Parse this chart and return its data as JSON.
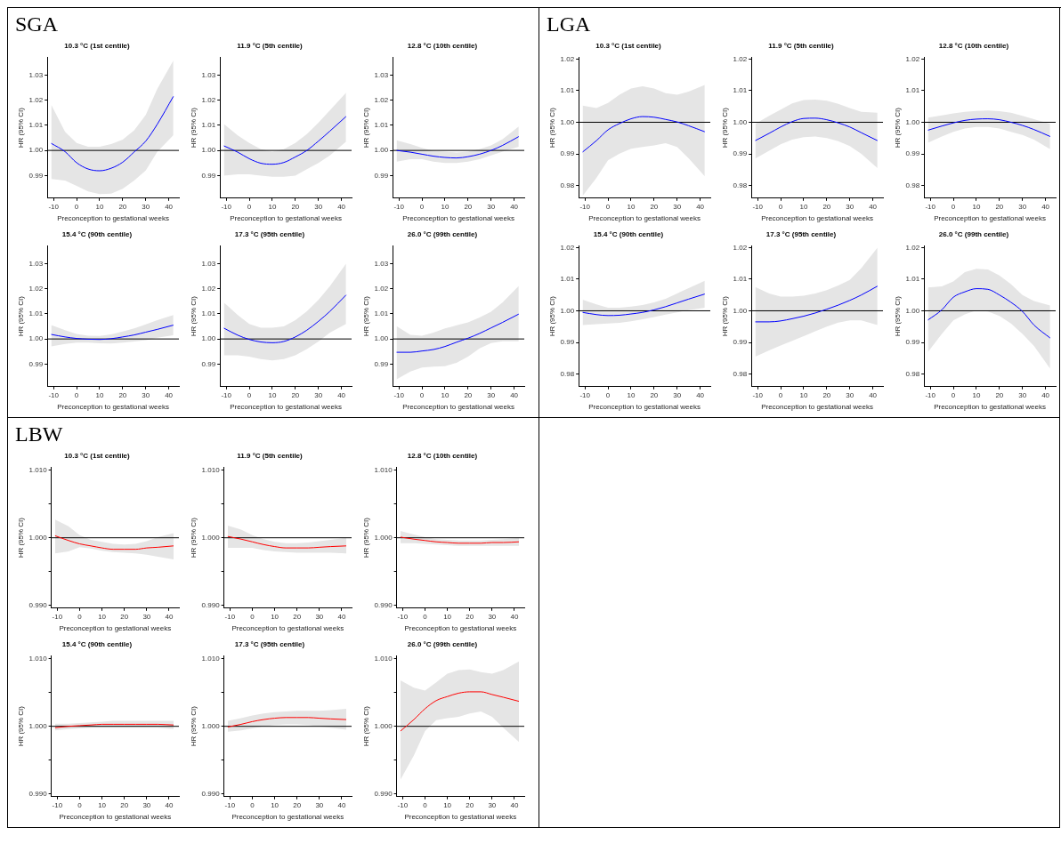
{
  "chart_data": [
    {
      "type": "line",
      "annotations": [
        "SGA"
      ],
      "title": "10.3 °C (1st centile)",
      "xlabel": "Preconception to gestational weeks",
      "ylabel": "HR (95% CI)",
      "xlim": [
        -12.7,
        44.4
      ],
      "xticks": [
        -10,
        0,
        10,
        20,
        30,
        40
      ],
      "ylim": [
        0.981,
        1.037
      ],
      "yticks": [
        0.99,
        {
          "value": 1,
          "label": "1.00"
        },
        1.01,
        1.02,
        1.03
      ],
      "ref_lines": [
        {
          "axis": "y",
          "value": 1,
          "color": "#000000"
        }
      ],
      "x": [
        -11,
        -5,
        0,
        5,
        10,
        15,
        20,
        25,
        30,
        35,
        42
      ],
      "series": [
        {
          "color": "#0000ff",
          "values": [
            1.0028,
            0.9995,
            0.9951,
            0.9926,
            0.9919,
            0.9929,
            0.9953,
            0.9994,
            1.0037,
            1.0104,
            1.0215
          ],
          "lower": [
            0.9886,
            0.988,
            0.9859,
            0.9837,
            0.9826,
            0.9828,
            0.9847,
            0.988,
            0.992,
            0.9994,
            1.0061
          ],
          "upper": [
            1.0182,
            1.0074,
            1.003,
            1.0015,
            1.0015,
            1.0025,
            1.0043,
            1.008,
            1.0141,
            1.0245,
            1.0358
          ]
        }
      ]
    },
    {
      "type": "line",
      "title": "11.9 °C (5th centile)",
      "xlabel": "Preconception to gestational weeks",
      "ylabel": "HR (95% CI)",
      "xlim": [
        -12.7,
        44.4
      ],
      "xticks": [
        -10,
        0,
        10,
        20,
        30,
        40
      ],
      "ylim": [
        0.981,
        1.037
      ],
      "yticks": [
        0.99,
        {
          "value": 1,
          "label": "1.00"
        },
        1.01,
        1.02,
        1.03
      ],
      "ref_lines": [
        {
          "axis": "y",
          "value": 1,
          "color": "#000000"
        }
      ],
      "x": [
        -11,
        -5,
        0,
        5,
        10,
        15,
        20,
        25,
        30,
        35,
        42
      ],
      "series": [
        {
          "color": "#0000ff",
          "values": [
            1.0018,
            0.9993,
            0.9967,
            0.9949,
            0.9945,
            0.9952,
            0.9974,
            1.0,
            1.0037,
            1.0077,
            1.0135
          ],
          "lower": [
            0.99,
            0.9905,
            0.9905,
            0.99,
            0.9895,
            0.9895,
            0.99,
            0.9925,
            0.995,
            0.998,
            1.0035
          ],
          "upper": [
            1.0105,
            1.006,
            1.003,
            1.0005,
            0.9995,
            1.0005,
            1.003,
            1.0065,
            1.011,
            1.016,
            1.023
          ]
        }
      ]
    },
    {
      "type": "line",
      "title": "12.8 °C (10th centile)",
      "xlabel": "Preconception to gestational weeks",
      "ylabel": "HR (95% CI)",
      "xlim": [
        -12.7,
        44.4
      ],
      "xticks": [
        -10,
        0,
        10,
        20,
        30,
        40
      ],
      "ylim": [
        0.981,
        1.037
      ],
      "yticks": [
        0.99,
        {
          "value": 1,
          "label": "1.00"
        },
        1.01,
        1.02,
        1.03
      ],
      "ref_lines": [
        {
          "axis": "y",
          "value": 1,
          "color": "#000000"
        }
      ],
      "x": [
        -11,
        -5,
        0,
        5,
        10,
        15,
        20,
        25,
        30,
        35,
        42
      ],
      "series": [
        {
          "color": "#0000ff",
          "values": [
            1.0,
            0.9993,
            0.9985,
            0.9977,
            0.9972,
            0.997,
            0.9975,
            0.9985,
            1.0,
            1.002,
            1.0055
          ],
          "lower": [
            0.9955,
            0.9965,
            0.9965,
            0.9955,
            0.995,
            0.995,
            0.9955,
            0.9965,
            0.998,
            0.9995,
            1.0015
          ],
          "upper": [
            1.004,
            1.0025,
            1.001,
            0.9998,
            0.9995,
            0.9992,
            0.9995,
            1.0005,
            1.002,
            1.0045,
            1.0095
          ]
        }
      ]
    },
    {
      "type": "line",
      "title": "15.4 °C (90th centile)",
      "xlabel": "Preconception to gestational weeks",
      "ylabel": "HR (95% CI)",
      "xlim": [
        -12.7,
        44.4
      ],
      "xticks": [
        -10,
        0,
        10,
        20,
        30,
        40
      ],
      "ylim": [
        0.981,
        1.037
      ],
      "yticks": [
        0.99,
        {
          "value": 1,
          "label": "1.00"
        },
        1.01,
        1.02,
        1.03
      ],
      "ref_lines": [
        {
          "axis": "y",
          "value": 1,
          "color": "#000000"
        }
      ],
      "x": [
        -11,
        -5,
        0,
        5,
        10,
        15,
        20,
        25,
        30,
        35,
        42
      ],
      "series": [
        {
          "color": "#0000ff",
          "values": [
            1.0018,
            1.0008,
            1.0002,
            0.9999,
            0.9998,
            1.0001,
            1.0008,
            1.0016,
            1.0027,
            1.0038,
            1.0055
          ],
          "lower": [
            0.997,
            0.998,
            0.9985,
            0.9985,
            0.9983,
            0.9982,
            0.9985,
            0.999,
            0.9995,
            1.0005,
            1.0015
          ],
          "upper": [
            1.0055,
            1.0035,
            1.002,
            1.0013,
            1.0012,
            1.0018,
            1.003,
            1.0042,
            1.0058,
            1.0075,
            1.0095
          ]
        }
      ]
    },
    {
      "type": "line",
      "title": "17.3 °C (95th centile)",
      "xlabel": "Preconception to gestational weeks",
      "ylabel": "HR (95% CI)",
      "xlim": [
        -12.7,
        44.4
      ],
      "xticks": [
        -10,
        0,
        10,
        20,
        30,
        40
      ],
      "ylim": [
        0.981,
        1.037
      ],
      "yticks": [
        0.99,
        {
          "value": 1,
          "label": "1.00"
        },
        1.01,
        1.02,
        1.03
      ],
      "ref_lines": [
        {
          "axis": "y",
          "value": 1,
          "color": "#000000"
        }
      ],
      "x": [
        -11,
        -5,
        0,
        5,
        10,
        15,
        20,
        25,
        30,
        35,
        42
      ],
      "series": [
        {
          "color": "#0000ff",
          "values": [
            1.0043,
            1.0015,
            0.9998,
            0.9988,
            0.9985,
            0.999,
            1.0008,
            1.0035,
            1.007,
            1.011,
            1.0175
          ],
          "lower": [
            0.9935,
            0.9935,
            0.993,
            0.992,
            0.9915,
            0.992,
            0.9935,
            0.996,
            0.999,
            1.0025,
            1.006
          ],
          "upper": [
            1.0145,
            1.0095,
            1.006,
            1.0045,
            1.0045,
            1.005,
            1.0075,
            1.011,
            1.0155,
            1.021,
            1.03
          ]
        }
      ]
    },
    {
      "type": "line",
      "title": "26.0 °C (99th centile)",
      "xlabel": "Preconception to gestational weeks",
      "ylabel": "HR (95% CI)",
      "xlim": [
        -12.7,
        44.4
      ],
      "xticks": [
        -10,
        0,
        10,
        20,
        30,
        40
      ],
      "ylim": [
        0.981,
        1.037
      ],
      "yticks": [
        0.99,
        {
          "value": 1,
          "label": "1.00"
        },
        1.01,
        1.02,
        1.03
      ],
      "ref_lines": [
        {
          "axis": "y",
          "value": 1,
          "color": "#000000"
        }
      ],
      "x": [
        -11,
        -5,
        0,
        5,
        10,
        15,
        20,
        25,
        30,
        35,
        42
      ],
      "series": [
        {
          "color": "#0000ff",
          "values": [
            0.9947,
            0.9947,
            0.9952,
            0.9958,
            0.997,
            0.9987,
            1.0003,
            1.0022,
            1.0044,
            1.0066,
            1.0099
          ],
          "lower": [
            0.9839,
            0.987,
            0.9886,
            0.989,
            0.9892,
            0.9905,
            0.993,
            0.9962,
            0.9984,
            0.9991,
            0.9991
          ],
          "upper": [
            1.0051,
            1.0016,
            1.0013,
            1.0025,
            1.0042,
            1.0054,
            1.0066,
            1.0085,
            1.0108,
            1.0146,
            1.0211
          ]
        }
      ]
    },
    {
      "type": "line",
      "annotations": [
        "LGA"
      ],
      "title": "10.3 °C (1st centile)",
      "xlabel": "Preconception to gestational weeks",
      "ylabel": "HR (95% CI)",
      "xlim": [
        -12.7,
        44.4
      ],
      "xticks": [
        -10,
        0,
        10,
        20,
        30,
        40
      ],
      "ylim": [
        0.976,
        1.0205
      ],
      "yticks": [
        0.98,
        0.99,
        {
          "value": 1,
          "label": "1.00"
        },
        1.01,
        1.02
      ],
      "ref_lines": [
        {
          "axis": "y",
          "value": 1,
          "color": "#000000"
        }
      ],
      "x": [
        -11,
        -5,
        0,
        5,
        10,
        15,
        20,
        25,
        30,
        35,
        42
      ],
      "series": [
        {
          "color": "#0000ff",
          "values": [
            0.9906,
            0.9942,
            0.9976,
            0.9996,
            1.0011,
            1.0018,
            1.0016,
            1.0009,
            1.0001,
            0.9989,
            0.997
          ],
          "lower": [
            0.9767,
            0.9824,
            0.988,
            0.9901,
            0.9916,
            0.9922,
            0.9927,
            0.9934,
            0.9922,
            0.9886,
            0.9829
          ],
          "upper": [
            1.0053,
            1.0045,
            1.0061,
            1.0087,
            1.0107,
            1.0114,
            1.0107,
            1.0092,
            1.0087,
            1.0097,
            1.0118
          ]
        }
      ]
    },
    {
      "type": "line",
      "title": "11.9 °C (5th centile)",
      "xlabel": "Preconception to gestational weeks",
      "ylabel": "HR (95% CI)",
      "xlim": [
        -12.7,
        44.4
      ],
      "xticks": [
        -10,
        0,
        10,
        20,
        30,
        40
      ],
      "ylim": [
        0.976,
        1.0205
      ],
      "yticks": [
        0.98,
        0.99,
        {
          "value": 1,
          "label": "1.00"
        },
        1.01,
        1.02
      ],
      "ref_lines": [
        {
          "axis": "y",
          "value": 1,
          "color": "#000000"
        }
      ],
      "x": [
        -11,
        -5,
        0,
        5,
        10,
        15,
        20,
        25,
        30,
        35,
        42
      ],
      "series": [
        {
          "color": "#0000ff",
          "values": [
            0.9942,
            0.9965,
            0.9985,
            1.0002,
            1.0012,
            1.0013,
            1.0008,
            0.9998,
            0.9985,
            0.9967,
            0.9942
          ],
          "lower": [
            0.9885,
            0.991,
            0.993,
            0.9945,
            0.9953,
            0.9955,
            0.995,
            0.994,
            0.9925,
            0.99,
            0.9855
          ],
          "upper": [
            0.9995,
            1.002,
            1.004,
            1.006,
            1.007,
            1.0072,
            1.0068,
            1.0058,
            1.0045,
            1.0033,
            1.003
          ]
        }
      ]
    },
    {
      "type": "line",
      "title": "12.8 °C (10th centile)",
      "xlabel": "Preconception to gestational weeks",
      "ylabel": "HR (95% CI)",
      "xlim": [
        -12.7,
        44.4
      ],
      "xticks": [
        -10,
        0,
        10,
        20,
        30,
        40
      ],
      "ylim": [
        0.976,
        1.0205
      ],
      "yticks": [
        0.98,
        0.99,
        {
          "value": 1,
          "label": "1.00"
        },
        1.01,
        1.02
      ],
      "ref_lines": [
        {
          "axis": "y",
          "value": 1,
          "color": "#000000"
        }
      ],
      "x": [
        -11,
        -5,
        0,
        5,
        10,
        15,
        20,
        25,
        30,
        35,
        42
      ],
      "series": [
        {
          "color": "#0000ff",
          "values": [
            0.9975,
            0.9988,
            0.9998,
            1.0006,
            1.001,
            1.0011,
            1.0008,
            1.0,
            0.999,
            0.9977,
            0.9955
          ],
          "lower": [
            0.9935,
            0.9955,
            0.997,
            0.998,
            0.9985,
            0.9985,
            0.998,
            0.997,
            0.996,
            0.9945,
            0.9915
          ],
          "upper": [
            1.0015,
            1.0022,
            1.0028,
            1.0033,
            1.0036,
            1.0037,
            1.0035,
            1.003,
            1.002,
            1.001,
            0.9995
          ]
        }
      ]
    },
    {
      "type": "line",
      "title": "15.4 °C (90th centile)",
      "xlabel": "Preconception to gestational weeks",
      "ylabel": "HR (95% CI)",
      "xlim": [
        -12.7,
        44.4
      ],
      "xticks": [
        -10,
        0,
        10,
        20,
        30,
        40
      ],
      "ylim": [
        0.976,
        1.0205
      ],
      "yticks": [
        0.98,
        0.99,
        {
          "value": 1,
          "label": "1.00"
        },
        1.01,
        1.02
      ],
      "ref_lines": [
        {
          "axis": "y",
          "value": 1,
          "color": "#000000"
        }
      ],
      "x": [
        -11,
        -5,
        0,
        5,
        10,
        15,
        20,
        25,
        30,
        35,
        42
      ],
      "series": [
        {
          "color": "#0000ff",
          "values": [
            0.9995,
            0.9988,
            0.9985,
            0.9986,
            0.999,
            0.9995,
            1.0003,
            1.0013,
            1.0025,
            1.0037,
            1.0053
          ],
          "lower": [
            0.9955,
            0.9958,
            0.996,
            0.9962,
            0.9967,
            0.9973,
            0.998,
            0.9988,
            0.9995,
            1.0002,
            1.001
          ],
          "upper": [
            1.0035,
            1.002,
            1.001,
            1.001,
            1.0013,
            1.0018,
            1.0027,
            1.0038,
            1.0055,
            1.0072,
            1.0095
          ]
        }
      ]
    },
    {
      "type": "line",
      "title": "17.3 °C (95th centile)",
      "xlabel": "Preconception to gestational weeks",
      "ylabel": "HR (95% CI)",
      "xlim": [
        -12.7,
        44.4
      ],
      "xticks": [
        -10,
        0,
        10,
        20,
        30,
        40
      ],
      "ylim": [
        0.976,
        1.0205
      ],
      "yticks": [
        0.98,
        0.99,
        {
          "value": 1,
          "label": "1.00"
        },
        1.01,
        1.02
      ],
      "ref_lines": [
        {
          "axis": "y",
          "value": 1,
          "color": "#000000"
        }
      ],
      "x": [
        -11,
        -5,
        0,
        5,
        10,
        15,
        20,
        25,
        30,
        35,
        42
      ],
      "series": [
        {
          "color": "#0000ff",
          "values": [
            0.9965,
            0.9965,
            0.9968,
            0.9975,
            0.9983,
            0.9993,
            1.0005,
            1.0018,
            1.0033,
            1.005,
            1.0078
          ],
          "lower": [
            0.9855,
            0.9875,
            0.989,
            0.9905,
            0.992,
            0.9935,
            0.995,
            0.9963,
            0.997,
            0.997,
            0.9955
          ],
          "upper": [
            1.0075,
            1.0055,
            1.0045,
            1.0045,
            1.0048,
            1.0055,
            1.0065,
            1.008,
            1.0098,
            1.0135,
            1.02
          ]
        }
      ]
    },
    {
      "type": "line",
      "title": "26.0 °C (99th centile)",
      "xlabel": "Preconception to gestational weeks",
      "ylabel": "HR (95% CI)",
      "xlim": [
        -12.7,
        44.4
      ],
      "xticks": [
        -10,
        0,
        10,
        20,
        30,
        40
      ],
      "ylim": [
        0.976,
        1.0205
      ],
      "yticks": [
        0.98,
        0.99,
        {
          "value": 1,
          "label": "1.00"
        },
        1.01,
        1.02
      ],
      "ref_lines": [
        {
          "axis": "y",
          "value": 1,
          "color": "#000000"
        }
      ],
      "x": [
        -11,
        -5,
        0,
        5,
        10,
        15,
        20,
        25,
        30,
        35,
        42
      ],
      "series": [
        {
          "color": "#0000ff",
          "values": [
            0.9971,
            1.0003,
            1.0043,
            1.006,
            1.007,
            1.0068,
            1.005,
            1.0027,
            0.9998,
            0.9955,
            0.9914
          ],
          "lower": [
            0.987,
            0.9927,
            0.997,
            0.9989,
            1.0001,
            0.9998,
            0.9984,
            0.996,
            0.9927,
            0.9889,
            0.9817
          ],
          "upper": [
            1.0074,
            1.0077,
            1.0093,
            1.0122,
            1.0133,
            1.0131,
            1.0112,
            1.0084,
            1.005,
            1.0031,
            1.0017
          ]
        }
      ]
    },
    {
      "type": "line",
      "annotations": [
        "LBW"
      ],
      "title": "10.3 °C (1st centile)",
      "xlabel": "Preconception to gestational weeks",
      "ylabel": "HR (95% CI)",
      "xlim": [
        -12.7,
        44.4
      ],
      "xticks": [
        -10,
        0,
        10,
        20,
        30,
        40
      ],
      "ylim": [
        0.9896,
        1.0104
      ],
      "yticks": [
        {
          "value": 0.99,
          "label": "0.990"
        },
        {
          "value": 0.995,
          "label": null
        },
        {
          "value": 1,
          "label": "1.000"
        },
        {
          "value": 1.005,
          "label": null
        },
        {
          "value": 1.01,
          "label": "1.010"
        }
      ],
      "ref_lines": [
        {
          "axis": "y",
          "value": 1,
          "color": "#000000"
        }
      ],
      "x": [
        -11,
        -5,
        0,
        5,
        10,
        15,
        20,
        25,
        30,
        35,
        42
      ],
      "series": [
        {
          "color": "#ff0000",
          "values": [
            1.0003,
            0.9996,
            0.9991,
            0.9988,
            0.9985,
            0.9983,
            0.9983,
            0.9983,
            0.9985,
            0.9986,
            0.9988
          ],
          "lower": [
            0.9977,
            0.998,
            0.9986,
            0.9984,
            0.9981,
            0.9979,
            0.9978,
            0.9977,
            0.9975,
            0.9972,
            0.9968
          ],
          "upper": [
            1.0027,
            1.0017,
            1.0004,
            0.9997,
            0.9994,
            0.9991,
            0.999,
            0.9991,
            0.9995,
            1.0001,
            1.0007
          ]
        }
      ]
    },
    {
      "type": "line",
      "title": "11.9 °C (5th centile)",
      "xlabel": "Preconception to gestational weeks",
      "ylabel": "HR (95% CI)",
      "xlim": [
        -12.7,
        44.4
      ],
      "xticks": [
        -10,
        0,
        10,
        20,
        30,
        40
      ],
      "ylim": [
        0.9896,
        1.0104
      ],
      "yticks": [
        {
          "value": 0.99,
          "label": "0.990"
        },
        {
          "value": 0.995,
          "label": null
        },
        {
          "value": 1,
          "label": "1.000"
        },
        {
          "value": 1.005,
          "label": null
        },
        {
          "value": 1.01,
          "label": "1.010"
        }
      ],
      "ref_lines": [
        {
          "axis": "y",
          "value": 1,
          "color": "#000000"
        }
      ],
      "x": [
        -11,
        -5,
        0,
        5,
        10,
        15,
        20,
        25,
        30,
        35,
        42
      ],
      "series": [
        {
          "color": "#ff0000",
          "values": [
            1.0002,
            0.9998,
            0.9994,
            0.999,
            0.9987,
            0.9985,
            0.9985,
            0.9985,
            0.9986,
            0.9987,
            0.9988
          ],
          "lower": [
            0.9985,
            0.9985,
            0.9985,
            0.9982,
            0.998,
            0.9979,
            0.9978,
            0.9978,
            0.9978,
            0.9978,
            0.9977
          ],
          "upper": [
            1.0018,
            1.0012,
            1.0004,
            0.9998,
            0.9994,
            0.9992,
            0.9992,
            0.9993,
            0.9995,
            0.9997,
            1.0
          ]
        }
      ]
    },
    {
      "type": "line",
      "title": "12.8 °C (10th centile)",
      "xlabel": "Preconception to gestational weeks",
      "ylabel": "HR (95% CI)",
      "xlim": [
        -12.7,
        44.4
      ],
      "xticks": [
        -10,
        0,
        10,
        20,
        30,
        40
      ],
      "ylim": [
        0.9896,
        1.0104
      ],
      "yticks": [
        {
          "value": 0.99,
          "label": "0.990"
        },
        {
          "value": 0.995,
          "label": null
        },
        {
          "value": 1,
          "label": "1.000"
        },
        {
          "value": 1.005,
          "label": null
        },
        {
          "value": 1.01,
          "label": "1.010"
        }
      ],
      "ref_lines": [
        {
          "axis": "y",
          "value": 1,
          "color": "#000000"
        }
      ],
      "x": [
        -11,
        -5,
        0,
        5,
        10,
        15,
        20,
        25,
        30,
        35,
        42
      ],
      "series": [
        {
          "color": "#ff0000",
          "values": [
            1.0001,
            0.9998,
            0.9996,
            0.9994,
            0.9993,
            0.9992,
            0.9992,
            0.9992,
            0.9993,
            0.9993,
            0.9994
          ],
          "lower": [
            0.9992,
            0.9992,
            0.9991,
            0.999,
            0.9989,
            0.9988,
            0.9988,
            0.9988,
            0.9988,
            0.9988,
            0.9988
          ],
          "upper": [
            1.001,
            1.0005,
            1.0001,
            0.9998,
            0.9997,
            0.9996,
            0.9996,
            0.9996,
            0.9997,
            0.9998,
            1.0
          ]
        }
      ]
    },
    {
      "type": "line",
      "title": "15.4 °C (90th centile)",
      "xlabel": "Preconception to gestational weeks",
      "ylabel": "HR (95% CI)",
      "xlim": [
        -12.7,
        44.4
      ],
      "xticks": [
        -10,
        0,
        10,
        20,
        30,
        40
      ],
      "ylim": [
        0.9896,
        1.0104
      ],
      "yticks": [
        {
          "value": 0.99,
          "label": "0.990"
        },
        {
          "value": 0.995,
          "label": null
        },
        {
          "value": 1,
          "label": "1.000"
        },
        {
          "value": 1.005,
          "label": null
        },
        {
          "value": 1.01,
          "label": "1.010"
        }
      ],
      "ref_lines": [
        {
          "axis": "y",
          "value": 1,
          "color": "#000000"
        }
      ],
      "x": [
        -11,
        -5,
        0,
        5,
        10,
        15,
        20,
        25,
        30,
        35,
        42
      ],
      "series": [
        {
          "color": "#ff0000",
          "values": [
            0.9998,
            1.0,
            1.0001,
            1.0002,
            1.0003,
            1.0003,
            1.0003,
            1.0003,
            1.0003,
            1.0003,
            1.0002
          ],
          "lower": [
            0.9994,
            0.9996,
            0.9997,
            0.9998,
            0.9998,
            0.9998,
            0.9998,
            0.9998,
            0.9998,
            0.9998,
            0.9996
          ],
          "upper": [
            1.0004,
            1.0004,
            1.0005,
            1.0006,
            1.0007,
            1.0008,
            1.0008,
            1.0008,
            1.0008,
            1.0008,
            1.0008
          ]
        }
      ]
    },
    {
      "type": "line",
      "title": "17.3 °C (95th centile)",
      "xlabel": "Preconception to gestational weeks",
      "ylabel": "HR (95% CI)",
      "xlim": [
        -12.7,
        44.4
      ],
      "xticks": [
        -10,
        0,
        10,
        20,
        30,
        40
      ],
      "ylim": [
        0.9896,
        1.0104
      ],
      "yticks": [
        {
          "value": 0.99,
          "label": "0.990"
        },
        {
          "value": 0.995,
          "label": null
        },
        {
          "value": 1,
          "label": "1.000"
        },
        {
          "value": 1.005,
          "label": null
        },
        {
          "value": 1.01,
          "label": "1.010"
        }
      ],
      "ref_lines": [
        {
          "axis": "y",
          "value": 1,
          "color": "#000000"
        }
      ],
      "x": [
        -11,
        -5,
        0,
        5,
        10,
        15,
        20,
        25,
        30,
        35,
        42
      ],
      "series": [
        {
          "color": "#ff0000",
          "values": [
            0.9999,
            1.0003,
            1.0007,
            1.001,
            1.0012,
            1.0013,
            1.0013,
            1.0013,
            1.0012,
            1.0011,
            1.001
          ],
          "lower": [
            0.9992,
            0.9994,
            0.9997,
            1.0,
            1.0002,
            1.0003,
            1.0003,
            1.0002,
            1.0,
            0.9998,
            0.9995
          ],
          "upper": [
            1.0008,
            1.0012,
            1.0016,
            1.0019,
            1.0021,
            1.0022,
            1.0023,
            1.0023,
            1.0023,
            1.0024,
            1.0026
          ]
        }
      ]
    },
    {
      "type": "line",
      "title": "26.0 °C (99th centile)",
      "xlabel": "Preconception to gestational weeks",
      "ylabel": "HR (95% CI)",
      "xlim": [
        -12.7,
        44.4
      ],
      "xticks": [
        -10,
        0,
        10,
        20,
        30,
        40
      ],
      "ylim": [
        0.9896,
        1.0104
      ],
      "yticks": [
        {
          "value": 0.99,
          "label": "0.990"
        },
        {
          "value": 0.995,
          "label": null
        },
        {
          "value": 1,
          "label": "1.000"
        },
        {
          "value": 1.005,
          "label": null
        },
        {
          "value": 1.01,
          "label": "1.010"
        }
      ],
      "ref_lines": [
        {
          "axis": "y",
          "value": 1,
          "color": "#000000"
        }
      ],
      "x": [
        -11,
        -5,
        0,
        5,
        10,
        15,
        20,
        25,
        30,
        35,
        42
      ],
      "series": [
        {
          "color": "#ff0000",
          "values": [
            0.9993,
            1.001,
            1.0026,
            1.0038,
            1.0044,
            1.0049,
            1.0051,
            1.0051,
            1.0047,
            1.0043,
            1.0037
          ],
          "lower": [
            0.9921,
            0.9957,
            0.9993,
            1.0009,
            1.0012,
            1.0014,
            1.0019,
            1.0022,
            1.0014,
            0.9998,
            0.9977
          ],
          "upper": [
            1.0068,
            1.0057,
            1.0053,
            1.0065,
            1.0078,
            1.0083,
            1.0084,
            1.008,
            1.0078,
            1.0083,
            1.0096
          ]
        }
      ]
    }
  ]
}
